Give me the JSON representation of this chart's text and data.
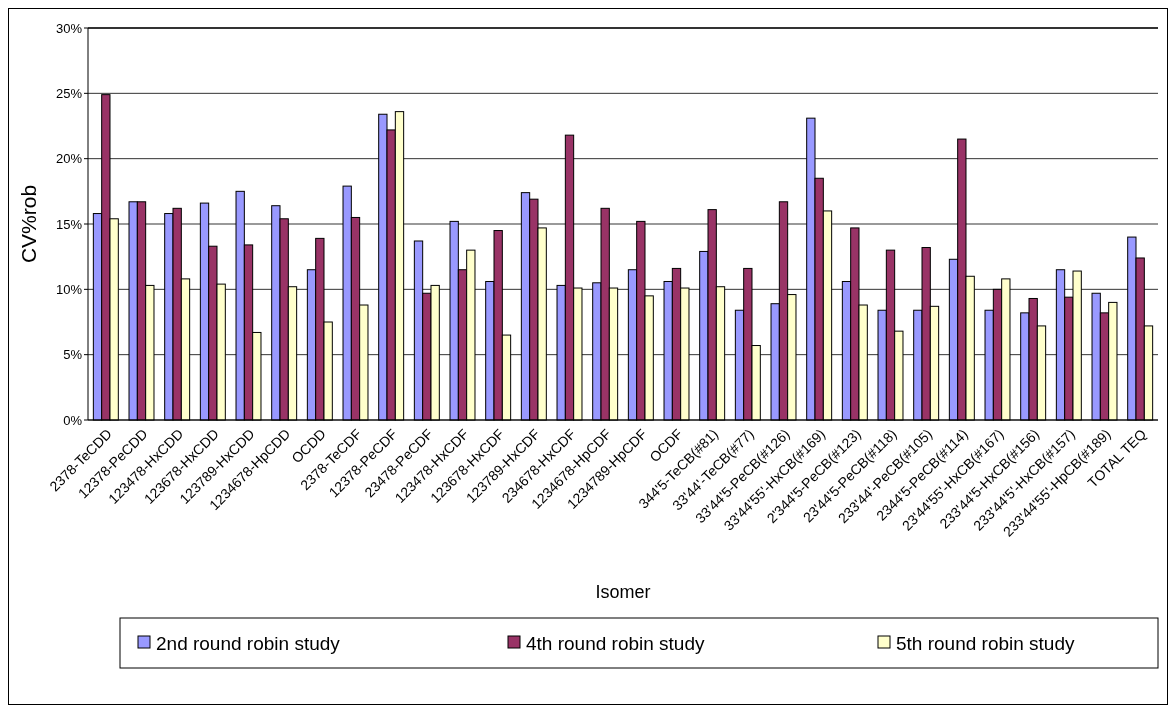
{
  "chart_data": {
    "type": "bar",
    "xlabel": "Isomer",
    "ylabel": "CV%rob",
    "categories": [
      "2378-TeCDD",
      "12378-PeCDD",
      "123478-HxCDD",
      "123678-HxCDD",
      "123789-HxCDD",
      "1234678-HpCDD",
      "OCDD",
      "2378-TeCDF",
      "12378-PeCDF",
      "23478-PeCDF",
      "123478-HxCDF",
      "123678-HxCDF",
      "123789-HxCDF",
      "234678-HxCDF",
      "1234678-HpCDF",
      "1234789-HpCDF",
      "OCDF",
      "344'5-TeCB(#81)",
      "33'44'-TeCB(#77)",
      "33'44'5-PeCB(#126)",
      "33'44'55'-HxCB(#169)",
      "2'344'5-PeCB(#123)",
      "23'44'5-PeCB(#118)",
      "233'44'-PeCB(#105)",
      "2344'5-PeCB(#114)",
      "23'44'55'-HxCB(#167)",
      "233'44'5-HxCB(#156)",
      "233'44'5'-HxCB(#157)",
      "233'44'55'-HpCB(#189)",
      "TOTAL TEQ"
    ],
    "series": [
      {
        "name": "2nd round robin study",
        "color": "#9999ff",
        "values": [
          15.8,
          16.7,
          15.8,
          16.6,
          17.5,
          16.4,
          11.5,
          17.9,
          23.4,
          13.7,
          15.2,
          10.6,
          17.4,
          10.3,
          10.5,
          11.5,
          10.6,
          12.9,
          8.4,
          8.9,
          23.1,
          10.6,
          8.4,
          8.4,
          12.3,
          8.4,
          8.2,
          11.5,
          9.7,
          14.0
        ]
      },
      {
        "name": "4th round robin study",
        "color": "#993366",
        "values": [
          24.9,
          16.7,
          16.2,
          13.3,
          13.4,
          15.4,
          13.9,
          15.5,
          22.2,
          9.7,
          11.5,
          14.5,
          16.9,
          21.8,
          16.2,
          15.2,
          11.6,
          16.1,
          11.6,
          16.7,
          18.5,
          14.7,
          13.0,
          13.2,
          21.5,
          10.0,
          9.3,
          9.4,
          8.2,
          12.4
        ]
      },
      {
        "name": "5th round robin study",
        "color": "#ffffcc",
        "values": [
          15.4,
          10.3,
          10.8,
          10.4,
          6.7,
          10.2,
          7.5,
          8.8,
          23.6,
          10.3,
          13.0,
          6.5,
          14.7,
          10.1,
          10.1,
          9.5,
          10.1,
          10.2,
          5.7,
          9.6,
          16.0,
          8.8,
          6.8,
          8.7,
          11.0,
          10.8,
          7.2,
          11.4,
          9.0,
          7.2
        ]
      }
    ],
    "ylim": [
      0,
      30
    ],
    "yticks": [
      {
        "value": 0,
        "label": "0%"
      },
      {
        "value": 5,
        "label": "5%"
      },
      {
        "value": 10,
        "label": "10%"
      },
      {
        "value": 15,
        "label": "15%"
      },
      {
        "value": 20,
        "label": "20%"
      },
      {
        "value": 25,
        "label": "25%"
      },
      {
        "value": 30,
        "label": "30%"
      }
    ],
    "grid": "y",
    "legend": "bottom"
  }
}
